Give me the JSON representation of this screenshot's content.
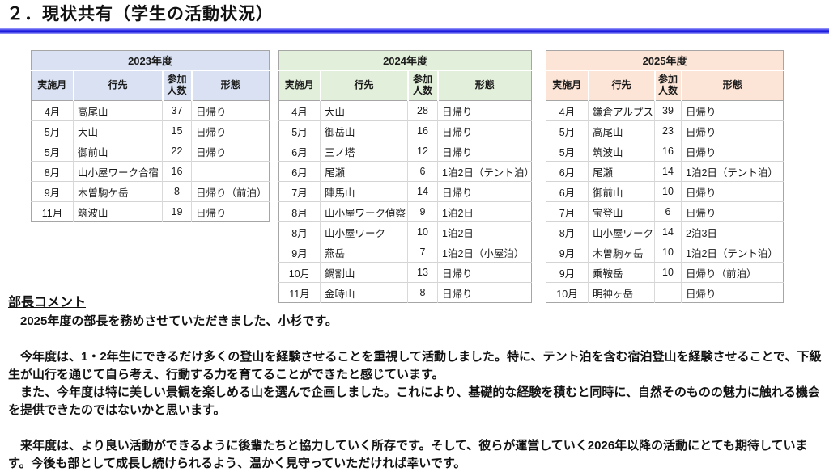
{
  "page": {
    "title": "２．現状共有（学生の活動状況）",
    "accent_rule_color": "#1c1cdd"
  },
  "column_headers": [
    "実施月",
    "行先",
    "参加人数",
    "形態"
  ],
  "tables": [
    {
      "year_label": "2023年度",
      "header_bg": "#d9e1f2",
      "rows": [
        [
          "4月",
          "高尾山",
          "37",
          "日帰り"
        ],
        [
          "5月",
          "大山",
          "15",
          "日帰り"
        ],
        [
          "5月",
          "御前山",
          "22",
          "日帰り"
        ],
        [
          "8月",
          "山小屋ワーク合宿",
          "16",
          ""
        ],
        [
          "9月",
          "木曽駒ケ岳",
          "8",
          "日帰り（前泊）"
        ],
        [
          "11月",
          "筑波山",
          "19",
          "日帰り"
        ]
      ]
    },
    {
      "year_label": "2024年度",
      "header_bg": "#e2efda",
      "rows": [
        [
          "4月",
          "大山",
          "28",
          "日帰り"
        ],
        [
          "5月",
          "御岳山",
          "16",
          "日帰り"
        ],
        [
          "6月",
          "三ノ塔",
          "12",
          "日帰り"
        ],
        [
          "6月",
          "尾瀬",
          "6",
          "1泊2日（テント泊）"
        ],
        [
          "7月",
          "陣馬山",
          "14",
          "日帰り"
        ],
        [
          "8月",
          "山小屋ワーク偵察",
          "9",
          "1泊2日"
        ],
        [
          "8月",
          "山小屋ワーク",
          "10",
          "1泊2日"
        ],
        [
          "9月",
          "燕岳",
          "7",
          "1泊2日（小屋泊）"
        ],
        [
          "10月",
          "鍋割山",
          "13",
          "日帰り"
        ],
        [
          "11月",
          "金時山",
          "8",
          "日帰り"
        ]
      ]
    },
    {
      "year_label": "2025年度",
      "header_bg": "#fce4d6",
      "rows": [
        [
          "4月",
          "鎌倉アルプス",
          "39",
          "日帰り"
        ],
        [
          "5月",
          "高尾山",
          "23",
          "日帰り"
        ],
        [
          "5月",
          "筑波山",
          "16",
          "日帰り"
        ],
        [
          "6月",
          "尾瀬",
          "14",
          "1泊2日（テント泊）"
        ],
        [
          "6月",
          "御前山",
          "10",
          "日帰り"
        ],
        [
          "7月",
          "宝登山",
          "6",
          "日帰り"
        ],
        [
          "8月",
          "山小屋ワーク",
          "14",
          "2泊3日"
        ],
        [
          "9月",
          "木曽駒ヶ岳",
          "10",
          "1泊2日（テント泊）"
        ],
        [
          "9月",
          "乗鞍岳",
          "10",
          "日帰り（前泊）"
        ],
        [
          "10月",
          "明神ヶ岳",
          "",
          "日帰り"
        ]
      ]
    }
  ],
  "comment": {
    "heading": "部長コメント",
    "paragraphs": [
      "　2025年度の部長を務めさせていただきました、小杉です。",
      "",
      "　今年度は、1・2年生にできるだけ多くの登山を経験させることを重視して活動しました。特に、テント泊を含む宿泊登山を経験させることで、下級生が山行を通じて自ら考え、行動する力を育てることができたと感じています。",
      "　また、今年度は特に美しい景観を楽しめる山を選んで企画しました。これにより、基礎的な経験を積むと同時に、自然そのものの魅力に触れる機会を提供できたのではないかと思います。",
      "",
      "　来年度は、より良い活動ができるように後輩たちと協力していく所存です。そして、彼らが運営していく2026年以降の活動にとても期待しています。今後も部として成長し続けられるよう、温かく見守っていただければ幸いです。"
    ]
  }
}
